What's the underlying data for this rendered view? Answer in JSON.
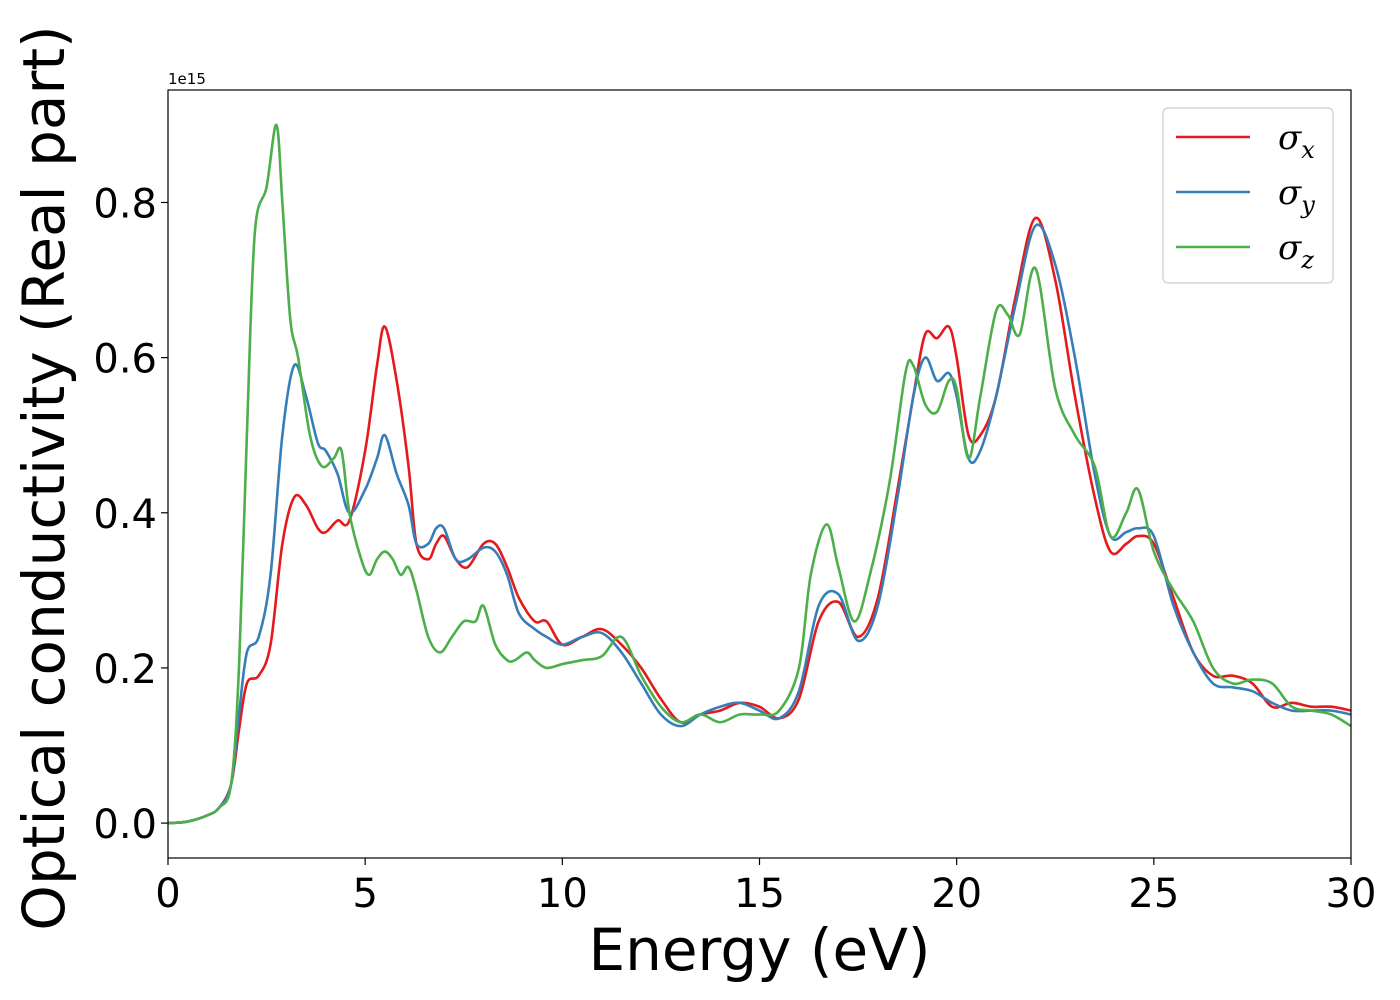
{
  "chart_data": {
    "type": "line",
    "xlabel": "Energy (eV)",
    "ylabel": "Optical conductivity (Real part)",
    "y_offset_label": "1e15",
    "xlim": [
      0,
      30
    ],
    "ylim": [
      -0.045,
      0.945
    ],
    "xticks": [
      0,
      5,
      10,
      15,
      20,
      25,
      30
    ],
    "xtick_labels": [
      "0",
      "5",
      "10",
      "15",
      "20",
      "25",
      "30"
    ],
    "yticks": [
      0.0,
      0.2,
      0.4,
      0.6,
      0.8
    ],
    "ytick_labels": [
      "0.0",
      "0.2",
      "0.4",
      "0.6",
      "0.8"
    ],
    "grid": false,
    "legend_position": "top-right",
    "series": [
      {
        "name": "σx",
        "symbol": "σ",
        "subscript": "x",
        "color": "#e41a1c",
        "x": [
          0,
          0.5,
          1.0,
          1.3,
          1.6,
          1.8,
          2.0,
          2.3,
          2.6,
          2.9,
          3.2,
          3.5,
          3.8,
          4.0,
          4.3,
          4.6,
          5.0,
          5.3,
          5.5,
          5.8,
          6.1,
          6.3,
          6.6,
          6.8,
          7.0,
          7.3,
          7.6,
          8.0,
          8.3,
          8.6,
          8.9,
          9.3,
          9.6,
          10.0,
          10.5,
          11.0,
          11.5,
          12.0,
          12.5,
          13.0,
          13.5,
          14.0,
          14.5,
          15.0,
          15.5,
          16.0,
          16.5,
          17.0,
          17.5,
          18.0,
          18.5,
          18.9,
          19.2,
          19.5,
          19.8,
          20.0,
          20.3,
          20.6,
          21.0,
          21.5,
          22.0,
          22.5,
          23.0,
          23.5,
          23.9,
          24.3,
          24.6,
          25.0,
          25.5,
          26.0,
          26.5,
          27.0,
          27.5,
          28.0,
          28.5,
          29.0,
          29.5,
          30.0
        ],
        "y": [
          0.0,
          0.002,
          0.01,
          0.02,
          0.05,
          0.12,
          0.18,
          0.19,
          0.23,
          0.36,
          0.42,
          0.41,
          0.38,
          0.375,
          0.39,
          0.39,
          0.48,
          0.59,
          0.64,
          0.57,
          0.46,
          0.36,
          0.34,
          0.36,
          0.37,
          0.34,
          0.33,
          0.36,
          0.36,
          0.33,
          0.29,
          0.26,
          0.26,
          0.23,
          0.24,
          0.25,
          0.23,
          0.2,
          0.16,
          0.13,
          0.14,
          0.145,
          0.155,
          0.15,
          0.135,
          0.16,
          0.26,
          0.285,
          0.24,
          0.29,
          0.43,
          0.55,
          0.63,
          0.625,
          0.64,
          0.6,
          0.5,
          0.5,
          0.55,
          0.68,
          0.78,
          0.7,
          0.55,
          0.42,
          0.35,
          0.36,
          0.37,
          0.36,
          0.29,
          0.22,
          0.19,
          0.19,
          0.18,
          0.15,
          0.155,
          0.15,
          0.15,
          0.145
        ]
      },
      {
        "name": "σy",
        "symbol": "σ",
        "subscript": "y",
        "color": "#377eb8",
        "x": [
          0,
          0.5,
          1.0,
          1.3,
          1.6,
          1.8,
          2.0,
          2.3,
          2.6,
          2.9,
          3.2,
          3.5,
          3.8,
          4.0,
          4.3,
          4.6,
          5.0,
          5.3,
          5.5,
          5.8,
          6.1,
          6.3,
          6.6,
          6.8,
          7.0,
          7.3,
          7.6,
          8.0,
          8.3,
          8.6,
          8.9,
          9.3,
          9.6,
          10.0,
          10.5,
          11.0,
          11.5,
          12.0,
          12.5,
          13.0,
          13.5,
          14.0,
          14.5,
          15.0,
          15.5,
          16.0,
          16.5,
          17.0,
          17.5,
          18.0,
          18.5,
          18.9,
          19.2,
          19.5,
          19.8,
          20.0,
          20.3,
          20.6,
          21.0,
          21.5,
          22.0,
          22.5,
          23.0,
          23.5,
          23.9,
          24.3,
          24.6,
          25.0,
          25.5,
          26.0,
          26.5,
          27.0,
          27.5,
          28.0,
          28.5,
          29.0,
          29.5,
          30.0
        ],
        "y": [
          0.0,
          0.002,
          0.01,
          0.02,
          0.05,
          0.14,
          0.22,
          0.24,
          0.32,
          0.5,
          0.59,
          0.55,
          0.49,
          0.48,
          0.45,
          0.4,
          0.43,
          0.47,
          0.5,
          0.45,
          0.41,
          0.36,
          0.36,
          0.38,
          0.38,
          0.34,
          0.34,
          0.355,
          0.35,
          0.32,
          0.27,
          0.25,
          0.24,
          0.23,
          0.24,
          0.245,
          0.22,
          0.18,
          0.14,
          0.125,
          0.14,
          0.15,
          0.155,
          0.145,
          0.135,
          0.17,
          0.28,
          0.295,
          0.235,
          0.28,
          0.42,
          0.55,
          0.6,
          0.57,
          0.58,
          0.55,
          0.47,
          0.48,
          0.55,
          0.67,
          0.77,
          0.72,
          0.6,
          0.45,
          0.37,
          0.375,
          0.38,
          0.37,
          0.28,
          0.22,
          0.18,
          0.175,
          0.17,
          0.155,
          0.145,
          0.145,
          0.145,
          0.14
        ]
      },
      {
        "name": "σz",
        "symbol": "σ",
        "subscript": "z",
        "color": "#4daf4a",
        "x": [
          0,
          0.5,
          1.0,
          1.3,
          1.6,
          1.8,
          2.0,
          2.2,
          2.5,
          2.75,
          2.9,
          3.1,
          3.3,
          3.6,
          3.9,
          4.2,
          4.4,
          4.6,
          4.9,
          5.1,
          5.3,
          5.5,
          5.7,
          5.9,
          6.1,
          6.3,
          6.6,
          6.9,
          7.2,
          7.5,
          7.8,
          8.0,
          8.3,
          8.6,
          8.8,
          9.1,
          9.3,
          9.6,
          10.0,
          10.5,
          11.0,
          11.5,
          12.0,
          12.5,
          13.0,
          13.5,
          14.0,
          14.5,
          15.0,
          15.5,
          16.0,
          16.3,
          16.7,
          17.0,
          17.4,
          17.8,
          18.3,
          18.7,
          18.9,
          19.2,
          19.5,
          19.8,
          20.0,
          20.3,
          20.6,
          21.0,
          21.3,
          21.6,
          22.0,
          22.5,
          23.0,
          23.5,
          23.9,
          24.3,
          24.6,
          25.0,
          25.5,
          26.0,
          26.5,
          27.0,
          27.5,
          28.0,
          28.5,
          29.0,
          29.5,
          30.0
        ],
        "y": [
          0.0,
          0.002,
          0.01,
          0.02,
          0.05,
          0.2,
          0.5,
          0.76,
          0.82,
          0.9,
          0.8,
          0.65,
          0.6,
          0.5,
          0.46,
          0.47,
          0.48,
          0.4,
          0.34,
          0.32,
          0.34,
          0.35,
          0.34,
          0.32,
          0.33,
          0.3,
          0.24,
          0.22,
          0.24,
          0.26,
          0.26,
          0.28,
          0.23,
          0.21,
          0.21,
          0.22,
          0.21,
          0.2,
          0.205,
          0.21,
          0.215,
          0.24,
          0.19,
          0.15,
          0.13,
          0.14,
          0.13,
          0.14,
          0.14,
          0.145,
          0.2,
          0.32,
          0.385,
          0.33,
          0.26,
          0.32,
          0.44,
          0.58,
          0.59,
          0.54,
          0.53,
          0.57,
          0.56,
          0.47,
          0.55,
          0.66,
          0.655,
          0.63,
          0.715,
          0.56,
          0.5,
          0.46,
          0.37,
          0.4,
          0.43,
          0.35,
          0.3,
          0.26,
          0.2,
          0.18,
          0.185,
          0.18,
          0.15,
          0.145,
          0.14,
          0.125
        ]
      }
    ]
  }
}
